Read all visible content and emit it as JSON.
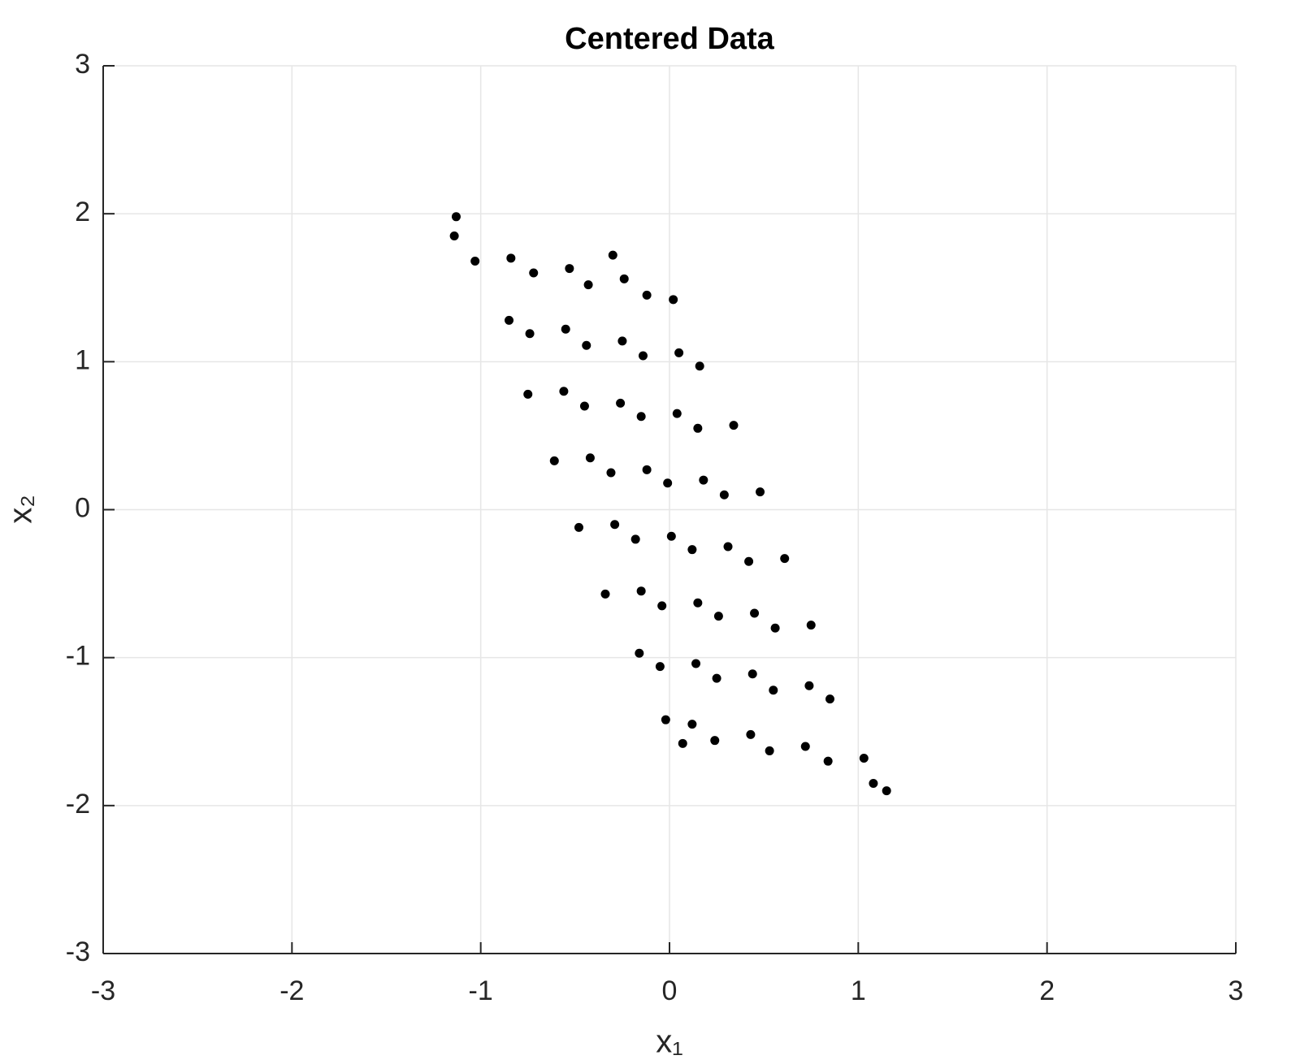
{
  "chart_data": {
    "type": "scatter",
    "title": "Centered Data",
    "xlabel": "x₁",
    "ylabel": "x₂",
    "xlim": [
      -3,
      3
    ],
    "ylim": [
      -3,
      3
    ],
    "xticks": [
      -3,
      -2,
      -1,
      0,
      1,
      2,
      3
    ],
    "yticks": [
      -3,
      -2,
      -1,
      0,
      1,
      2,
      3
    ],
    "grid": true,
    "series": [
      {
        "color": "#000000",
        "x": [
          1.03,
          0.84,
          0.72,
          0.53,
          0.43,
          0.24,
          0.12,
          -0.02,
          0.85,
          0.74,
          0.55,
          0.44,
          0.25,
          0.14,
          -0.05,
          -0.16,
          0.75,
          0.56,
          0.45,
          0.26,
          0.15,
          -0.04,
          -0.15,
          -0.34,
          0.61,
          0.42,
          0.31,
          0.12,
          0.01,
          -0.18,
          -0.29,
          -0.48,
          0.48,
          0.29,
          0.18,
          -0.01,
          -0.12,
          -0.31,
          -0.42,
          -0.61,
          0.34,
          0.15,
          0.04,
          -0.15,
          -0.26,
          -0.45,
          -0.56,
          -0.75,
          0.16,
          0.05,
          -0.14,
          -0.25,
          -0.44,
          -0.55,
          -0.74,
          -0.85,
          0.02,
          -0.12,
          -0.24,
          -0.43,
          -0.53,
          -0.72,
          -0.84,
          -1.03,
          -1.13,
          -1.14,
          1.15,
          1.08,
          -0.3,
          0.07
        ],
        "y": [
          -1.68,
          -1.7,
          -1.6,
          -1.63,
          -1.52,
          -1.56,
          -1.45,
          -1.42,
          -1.28,
          -1.19,
          -1.22,
          -1.11,
          -1.14,
          -1.04,
          -1.06,
          -0.97,
          -0.78,
          -0.8,
          -0.7,
          -0.72,
          -0.63,
          -0.65,
          -0.55,
          -0.57,
          -0.33,
          -0.35,
          -0.25,
          -0.27,
          -0.18,
          -0.2,
          -0.1,
          -0.12,
          0.12,
          0.1,
          0.2,
          0.18,
          0.27,
          0.25,
          0.35,
          0.33,
          0.57,
          0.55,
          0.65,
          0.63,
          0.72,
          0.7,
          0.8,
          0.78,
          0.97,
          1.06,
          1.04,
          1.14,
          1.11,
          1.22,
          1.19,
          1.28,
          1.42,
          1.45,
          1.56,
          1.52,
          1.63,
          1.6,
          1.7,
          1.68,
          1.98,
          1.85,
          -1.9,
          -1.85,
          1.72,
          -1.58
        ]
      }
    ]
  }
}
